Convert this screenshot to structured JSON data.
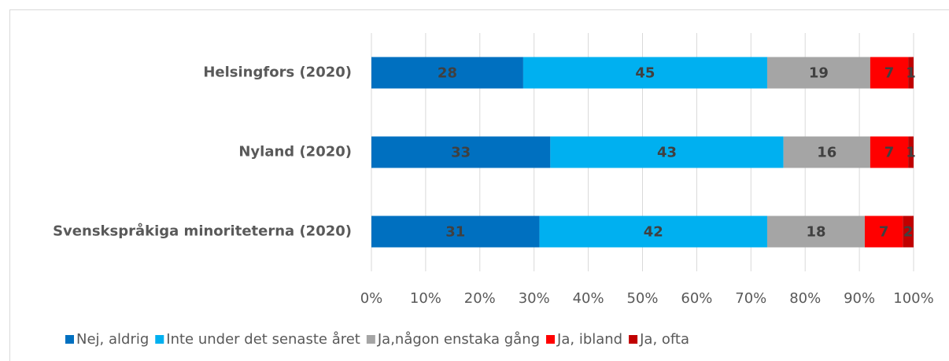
{
  "chart_data": {
    "type": "stacked_barh",
    "categories": [
      "Helsingfors (2020)",
      "Nyland (2020)",
      "Svenskspråkiga minoriteterna (2020)"
    ],
    "series": [
      {
        "name": "Nej, aldrig",
        "color": "#0070c0",
        "values": [
          28,
          33,
          31
        ]
      },
      {
        "name": "Inte under det senaste året",
        "color": "#00b0f0",
        "values": [
          45,
          43,
          42
        ]
      },
      {
        "name": "Ja,någon enstaka gång",
        "color": "#a5a5a5",
        "values": [
          19,
          16,
          18
        ]
      },
      {
        "name": "Ja, ibland",
        "color": "#ff0000",
        "values": [
          7,
          7,
          7
        ]
      },
      {
        "name": "Ja, ofta",
        "color": "#c00000",
        "values": [
          1,
          1,
          2
        ]
      }
    ],
    "xlim": [
      0,
      100
    ],
    "xticks": [
      {
        "value": 0,
        "label": "0%"
      },
      {
        "value": 10,
        "label": "10%"
      },
      {
        "value": 20,
        "label": "20%"
      },
      {
        "value": 30,
        "label": "30%"
      },
      {
        "value": 40,
        "label": "40%"
      },
      {
        "value": 50,
        "label": "50%"
      },
      {
        "value": 60,
        "label": "60%"
      },
      {
        "value": 70,
        "label": "70%"
      },
      {
        "value": 80,
        "label": "80%"
      },
      {
        "value": 90,
        "label": "90%"
      },
      {
        "value": 100,
        "label": "100%"
      }
    ],
    "grid": true,
    "legend": "bottom"
  }
}
